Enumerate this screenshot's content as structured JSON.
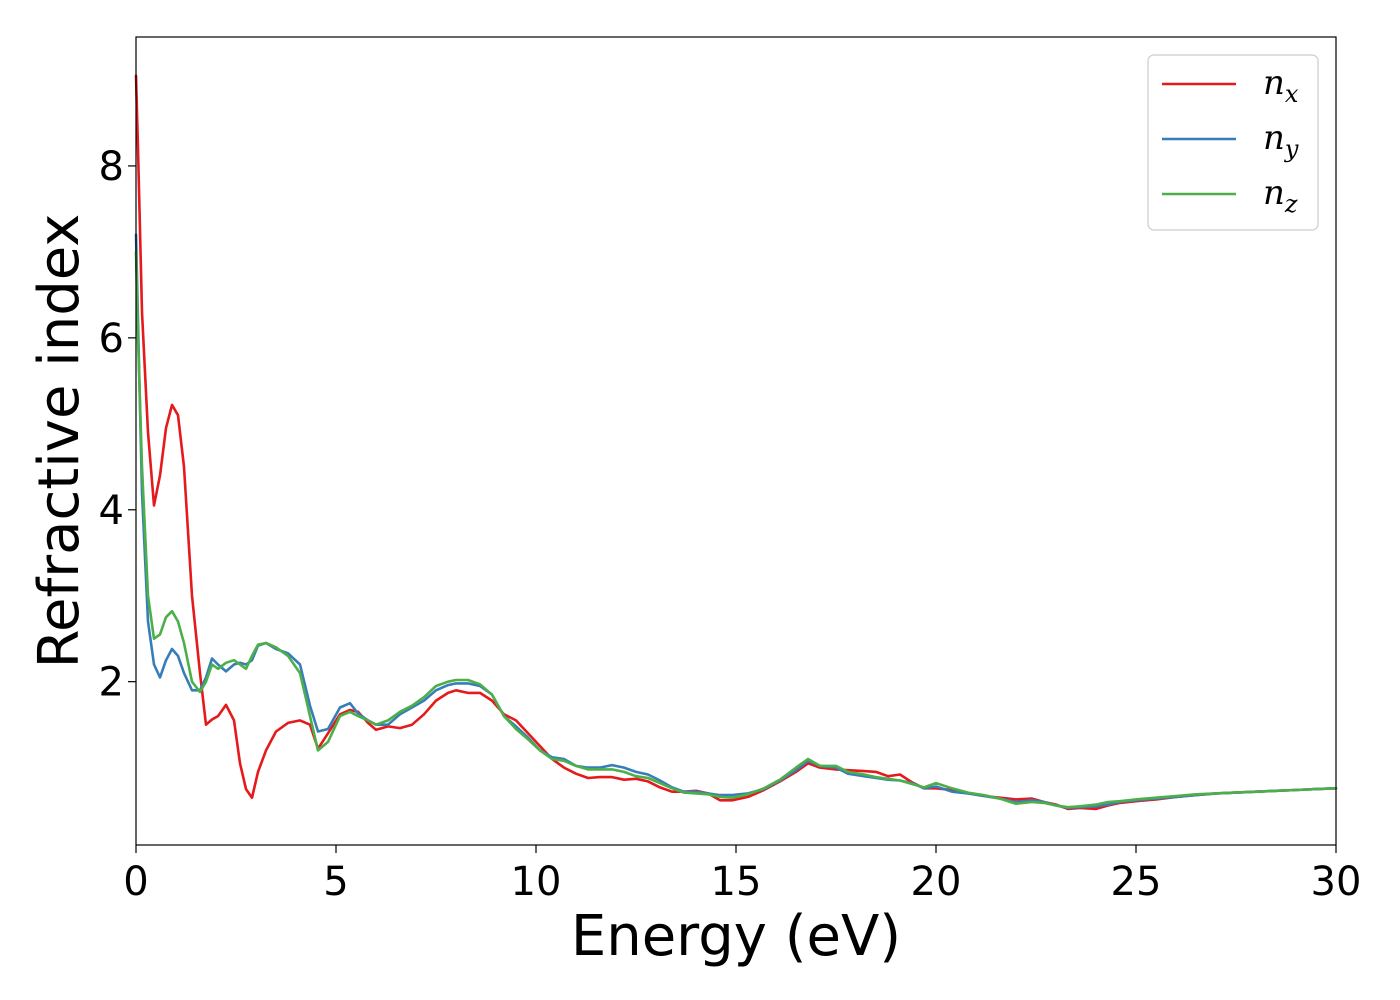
{
  "chart_data": {
    "type": "line",
    "title": "",
    "xlabel": "Energy (eV)",
    "ylabel": "Refractive index",
    "xlim": [
      0,
      30
    ],
    "ylim": [
      0.1,
      9.5
    ],
    "xticks": [
      0,
      5,
      10,
      15,
      20,
      25,
      30
    ],
    "xtick_labels": [
      "0",
      "5",
      "10",
      "15",
      "20",
      "25",
      "30"
    ],
    "yticks": [
      2,
      4,
      6,
      8
    ],
    "ytick_labels": [
      "2",
      "4",
      "6",
      "8"
    ],
    "grid": false,
    "legend_position": "top-right",
    "series": [
      {
        "name": "n_x",
        "legend_base": "n",
        "legend_sub": "x",
        "color": "#e41a1c",
        "x": [
          0,
          0.05,
          0.15,
          0.3,
          0.45,
          0.6,
          0.75,
          0.9,
          1.05,
          1.2,
          1.4,
          1.6,
          1.75,
          1.9,
          2.05,
          2.25,
          2.45,
          2.6,
          2.75,
          2.9,
          3.05,
          3.25,
          3.5,
          3.8,
          4.1,
          4.35,
          4.55,
          4.8,
          5.1,
          5.35,
          5.55,
          5.8,
          6.0,
          6.3,
          6.6,
          6.9,
          7.2,
          7.5,
          7.8,
          8.0,
          8.3,
          8.6,
          8.9,
          9.2,
          9.5,
          9.8,
          10.1,
          10.4,
          10.7,
          11.0,
          11.3,
          11.6,
          11.9,
          12.2,
          12.5,
          12.8,
          13.1,
          13.4,
          13.7,
          14.0,
          14.3,
          14.6,
          14.9,
          15.3,
          15.7,
          16.1,
          16.5,
          16.8,
          17.1,
          17.5,
          17.8,
          18.2,
          18.5,
          18.8,
          19.1,
          19.4,
          19.7,
          20.0,
          20.4,
          20.8,
          21.2,
          21.6,
          22.0,
          22.4,
          22.7,
          23.0,
          23.3,
          23.6,
          24.0,
          24.3,
          24.6,
          25.0,
          25.5,
          26.0,
          26.5,
          27.0,
          27.5,
          28.0,
          28.5,
          29.0,
          29.5,
          30.0
        ],
        "y": [
          9.05,
          8.2,
          6.3,
          4.9,
          4.05,
          4.4,
          4.95,
          5.22,
          5.1,
          4.5,
          3.0,
          2.1,
          1.5,
          1.56,
          1.6,
          1.73,
          1.55,
          1.05,
          0.75,
          0.65,
          0.95,
          1.2,
          1.42,
          1.52,
          1.55,
          1.5,
          1.22,
          1.4,
          1.62,
          1.67,
          1.65,
          1.52,
          1.44,
          1.48,
          1.46,
          1.5,
          1.62,
          1.78,
          1.87,
          1.9,
          1.87,
          1.87,
          1.78,
          1.62,
          1.55,
          1.4,
          1.25,
          1.1,
          1.0,
          0.93,
          0.88,
          0.89,
          0.89,
          0.86,
          0.87,
          0.84,
          0.77,
          0.72,
          0.72,
          0.73,
          0.7,
          0.62,
          0.62,
          0.66,
          0.74,
          0.84,
          0.95,
          1.05,
          1.0,
          0.98,
          0.97,
          0.96,
          0.95,
          0.9,
          0.92,
          0.83,
          0.76,
          0.76,
          0.74,
          0.7,
          0.67,
          0.65,
          0.63,
          0.64,
          0.6,
          0.57,
          0.52,
          0.53,
          0.52,
          0.56,
          0.59,
          0.61,
          0.63,
          0.66,
          0.68,
          0.7,
          0.71,
          0.72,
          0.73,
          0.74,
          0.75,
          0.76
        ]
      },
      {
        "name": "n_y",
        "legend_base": "n",
        "legend_sub": "y",
        "color": "#377eb8",
        "x": [
          0,
          0.05,
          0.15,
          0.3,
          0.45,
          0.6,
          0.75,
          0.9,
          1.05,
          1.2,
          1.4,
          1.6,
          1.75,
          1.9,
          2.05,
          2.25,
          2.45,
          2.6,
          2.75,
          2.9,
          3.05,
          3.25,
          3.5,
          3.8,
          4.1,
          4.35,
          4.55,
          4.8,
          5.1,
          5.35,
          5.55,
          5.8,
          6.0,
          6.3,
          6.6,
          6.9,
          7.2,
          7.5,
          7.8,
          8.0,
          8.3,
          8.6,
          8.9,
          9.2,
          9.5,
          9.8,
          10.1,
          10.4,
          10.7,
          11.0,
          11.3,
          11.6,
          11.9,
          12.2,
          12.5,
          12.8,
          13.1,
          13.4,
          13.7,
          14.0,
          14.3,
          14.6,
          14.9,
          15.3,
          15.7,
          16.1,
          16.5,
          16.8,
          17.1,
          17.5,
          17.8,
          18.2,
          18.5,
          18.8,
          19.1,
          19.4,
          19.7,
          20.0,
          20.4,
          20.8,
          21.2,
          21.6,
          22.0,
          22.4,
          22.7,
          23.0,
          23.3,
          23.6,
          24.0,
          24.3,
          24.6,
          25.0,
          25.5,
          26.0,
          26.5,
          27.0,
          27.5,
          28.0,
          28.5,
          29.0,
          29.5,
          30.0
        ],
        "y": [
          7.2,
          6.2,
          4.2,
          2.7,
          2.2,
          2.05,
          2.25,
          2.38,
          2.3,
          2.1,
          1.9,
          1.9,
          2.05,
          2.27,
          2.2,
          2.12,
          2.2,
          2.22,
          2.2,
          2.25,
          2.42,
          2.45,
          2.38,
          2.33,
          2.2,
          1.72,
          1.42,
          1.45,
          1.7,
          1.75,
          1.63,
          1.55,
          1.5,
          1.5,
          1.62,
          1.7,
          1.78,
          1.9,
          1.96,
          1.98,
          1.98,
          1.95,
          1.85,
          1.6,
          1.48,
          1.35,
          1.2,
          1.12,
          1.1,
          1.02,
          1.0,
          1.0,
          1.03,
          1.0,
          0.95,
          0.92,
          0.85,
          0.77,
          0.72,
          0.72,
          0.7,
          0.68,
          0.68,
          0.7,
          0.75,
          0.85,
          0.97,
          1.08,
          1.02,
          1.0,
          0.93,
          0.9,
          0.88,
          0.86,
          0.85,
          0.82,
          0.76,
          0.78,
          0.72,
          0.7,
          0.67,
          0.64,
          0.6,
          0.62,
          0.6,
          0.56,
          0.53,
          0.54,
          0.55,
          0.57,
          0.6,
          0.62,
          0.64,
          0.66,
          0.68,
          0.7,
          0.71,
          0.72,
          0.73,
          0.74,
          0.75,
          0.76
        ]
      },
      {
        "name": "n_z",
        "legend_base": "n",
        "legend_sub": "z",
        "color": "#4daf4a",
        "x": [
          0,
          0.05,
          0.15,
          0.3,
          0.45,
          0.6,
          0.75,
          0.9,
          1.05,
          1.2,
          1.4,
          1.6,
          1.75,
          1.9,
          2.05,
          2.25,
          2.45,
          2.6,
          2.75,
          2.9,
          3.05,
          3.25,
          3.5,
          3.8,
          4.1,
          4.35,
          4.55,
          4.8,
          5.1,
          5.35,
          5.55,
          5.8,
          6.0,
          6.3,
          6.6,
          6.9,
          7.2,
          7.5,
          7.8,
          8.0,
          8.3,
          8.6,
          8.9,
          9.2,
          9.5,
          9.8,
          10.1,
          10.4,
          10.7,
          11.0,
          11.3,
          11.6,
          11.9,
          12.2,
          12.5,
          12.8,
          13.1,
          13.4,
          13.7,
          14.0,
          14.3,
          14.6,
          14.9,
          15.3,
          15.7,
          16.1,
          16.5,
          16.8,
          17.1,
          17.5,
          17.8,
          18.2,
          18.5,
          18.8,
          19.1,
          19.4,
          19.7,
          20.0,
          20.4,
          20.8,
          21.2,
          21.6,
          22.0,
          22.4,
          22.7,
          23.0,
          23.3,
          23.6,
          24.0,
          24.3,
          24.6,
          25.0,
          25.5,
          26.0,
          26.5,
          27.0,
          27.5,
          28.0,
          28.5,
          29.0,
          29.5,
          30.0
        ],
        "y": [
          7.0,
          6.0,
          4.5,
          3.0,
          2.5,
          2.55,
          2.75,
          2.82,
          2.7,
          2.45,
          2.0,
          1.88,
          2.0,
          2.2,
          2.15,
          2.22,
          2.25,
          2.2,
          2.15,
          2.3,
          2.43,
          2.45,
          2.4,
          2.3,
          2.1,
          1.6,
          1.2,
          1.3,
          1.6,
          1.65,
          1.6,
          1.55,
          1.5,
          1.55,
          1.65,
          1.72,
          1.82,
          1.95,
          2.0,
          2.02,
          2.02,
          1.97,
          1.85,
          1.6,
          1.45,
          1.33,
          1.2,
          1.1,
          1.08,
          1.02,
          0.98,
          0.98,
          0.98,
          0.95,
          0.9,
          0.88,
          0.82,
          0.76,
          0.71,
          0.7,
          0.69,
          0.66,
          0.65,
          0.69,
          0.76,
          0.86,
          1.0,
          1.1,
          1.02,
          1.02,
          0.95,
          0.92,
          0.89,
          0.87,
          0.85,
          0.81,
          0.77,
          0.82,
          0.76,
          0.71,
          0.68,
          0.64,
          0.58,
          0.6,
          0.59,
          0.56,
          0.54,
          0.55,
          0.57,
          0.6,
          0.61,
          0.63,
          0.65,
          0.67,
          0.69,
          0.7,
          0.71,
          0.72,
          0.73,
          0.74,
          0.75,
          0.76
        ]
      }
    ]
  }
}
